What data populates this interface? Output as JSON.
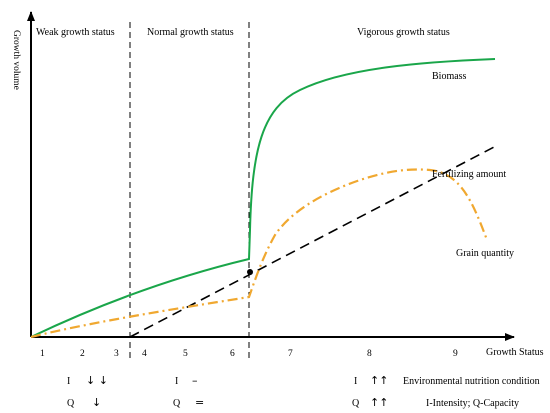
{
  "axes": {
    "y_label": "Growth volume",
    "x_label": "Growth Status",
    "x_ticks": [
      "1",
      "2",
      "3",
      "4",
      "5",
      "6",
      "7",
      "8",
      "9"
    ]
  },
  "zones": [
    {
      "label": "Weak growth status"
    },
    {
      "label": "Normal growth status"
    },
    {
      "label": "Vigorous growth status"
    }
  ],
  "curves": {
    "biomass": {
      "label": "Biomass",
      "color": "#1aa64a"
    },
    "fertilizing": {
      "label": "Fertilizing amount",
      "color": "#000000"
    },
    "grain": {
      "label": "Grain quantity",
      "color": "#f0a830"
    }
  },
  "legend": {
    "weak": {
      "i_symbol": "I",
      "i_arrow": "↓ ↓",
      "q_symbol": "Q",
      "q_arrow": "↓"
    },
    "normal": {
      "i_symbol": "I",
      "i_arrow": "–",
      "q_symbol": "Q",
      "q_arrow": "="
    },
    "vigorous": {
      "i_symbol": "I",
      "i_arrow": "↑↑",
      "q_symbol": "Q",
      "q_arrow": "↑↑"
    },
    "condition_label": "Environmental nutrition condition",
    "key_label": "I-Intensity; Q-Capacity"
  }
}
